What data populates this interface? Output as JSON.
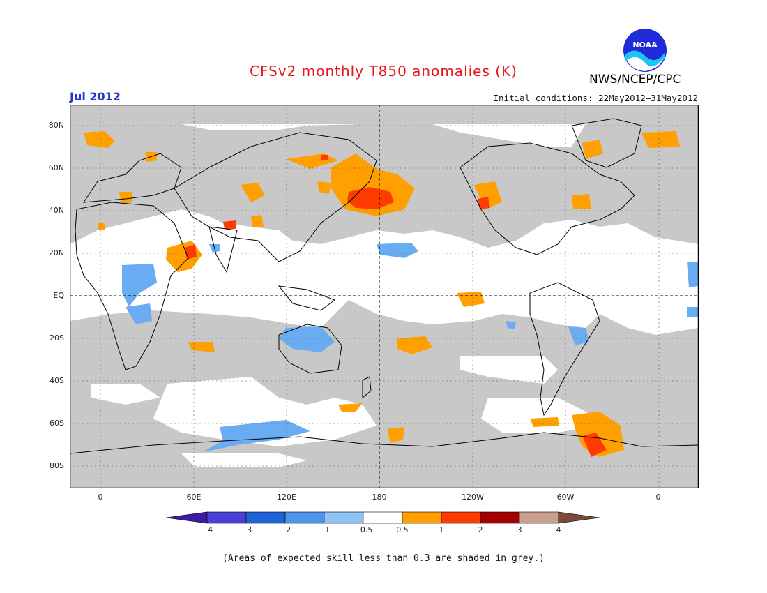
{
  "title": "CFSv2 monthly T850 anomalies (K)",
  "period": "Jul 2012",
  "initial_conditions": "Initial conditions: 22May2012–31May2012",
  "agency": "NWS/NCEP/CPC",
  "logo_text": "NOAA",
  "footnote": "(Areas of expected skill less than 0.3 are shaded in grey.)",
  "lat_labels": [
    "80N",
    "60N",
    "40N",
    "20N",
    "EQ",
    "20S",
    "40S",
    "60S",
    "80S"
  ],
  "lon_labels": [
    "0",
    "60E",
    "120E",
    "180",
    "120W",
    "60W",
    "0"
  ],
  "colorbar": {
    "labels": [
      "−4",
      "−3",
      "−2",
      "−1",
      "−0.5",
      "0.5",
      "1",
      "2",
      "3",
      "4"
    ],
    "colors": [
      "#3d1aa8",
      "#4a3fd6",
      "#1f63d6",
      "#4b96ec",
      "#8fc2f5",
      "#ffffff",
      "#ff9f00",
      "#ff3c00",
      "#a50000",
      "#c8a08c",
      "#7a4a3a"
    ]
  },
  "colors": {
    "skill_grey": "#c8c8c8",
    "warm_1": "#ff9f00",
    "warm_2": "#ff3c00",
    "cool_1": "#6aacf2",
    "title_red": "#e8161b",
    "period_blue": "#2037d0"
  }
}
